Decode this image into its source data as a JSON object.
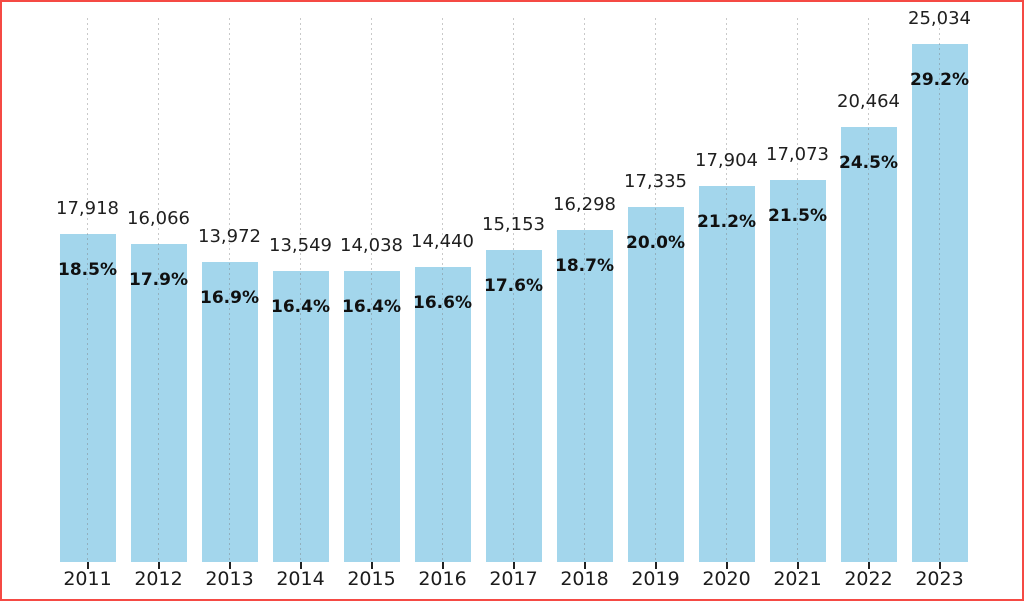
{
  "page": {
    "background_color": "#ffffff",
    "border_color": "#f54a44"
  },
  "chart_data": {
    "type": "bar",
    "title": "",
    "xlabel": "",
    "ylabel": "",
    "categories": [
      "2011",
      "2012",
      "2013",
      "2014",
      "2015",
      "2016",
      "2017",
      "2018",
      "2019",
      "2020",
      "2021",
      "2022",
      "2023"
    ],
    "series": [
      {
        "name": "count",
        "role": "bar-top-label",
        "values": [
          17918,
          16066,
          13972,
          13549,
          14038,
          14440,
          15153,
          16298,
          17335,
          17904,
          17073,
          20464,
          25034
        ],
        "labels": [
          "17,918",
          "16,066",
          "13,972",
          "13,549",
          "14,038",
          "14,440",
          "15,153",
          "16,298",
          "17,335",
          "17,904",
          "17,073",
          "20,464",
          "25,034"
        ]
      },
      {
        "name": "percent",
        "role": "bar-height",
        "values": [
          18.5,
          17.9,
          16.9,
          16.4,
          16.4,
          16.6,
          17.6,
          18.7,
          20.0,
          21.2,
          21.5,
          24.5,
          29.2
        ],
        "labels": [
          "18.5%",
          "17.9%",
          "16.9%",
          "16.4%",
          "16.4%",
          "16.6%",
          "17.6%",
          "18.7%",
          "20.0%",
          "21.2%",
          "21.5%",
          "24.5%",
          "29.2%"
        ]
      }
    ],
    "ylim": [
      0,
      31.6
    ],
    "grid": "vertical-dotted",
    "legend": "none",
    "bar_color": "#a3d6ec",
    "gridline_color": "#c9c9c9",
    "value_label_color": "#1f1f1f",
    "pct_label_color": "#101010",
    "tick_color": "#222222",
    "year_label_color": "#1c1c1c"
  }
}
